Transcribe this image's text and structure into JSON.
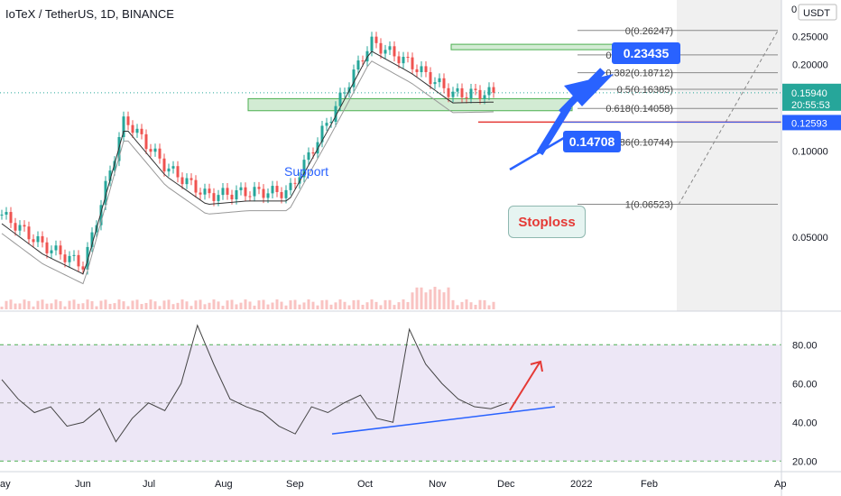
{
  "header": {
    "title": "IoTeX / TetherUS, 1D, BINANCE"
  },
  "currency": "USDT",
  "chart_data": [
    {
      "type": "candlestick",
      "title": "IoTeX / TetherUS, 1D, BINANCE",
      "y_scale": "log",
      "ylim": [
        0.032,
        0.29
      ],
      "price_ticks": [
        "0.25000",
        "0.20000",
        "0.10000",
        "0.05000"
      ],
      "price_tick_values": [
        0.25,
        0.2,
        0.1,
        0.05
      ],
      "top_tick": "0",
      "x_ticks": [
        "ay",
        "Jun",
        "Jul",
        "Aug",
        "Sep",
        "Oct",
        "Nov",
        "Dec",
        "2022",
        "Feb",
        "Ap"
      ],
      "price_series_approx": {
        "x": [
          "May",
          "Jun",
          "Jul",
          "Aug 10",
          "Aug 20",
          "Sep",
          "Oct",
          "Oct 25",
          "Nov 1",
          "Nov 8",
          "Nov 15",
          "Nov 25",
          "Dec 5"
        ],
        "close": [
          0.06,
          0.047,
          0.04,
          0.13,
          0.088,
          0.07,
          0.072,
          0.072,
          0.13,
          0.24,
          0.2,
          0.158,
          0.159
        ]
      },
      "current_price": "0.15940",
      "countdown": "20:55:53",
      "stoploss_price": "0.12593",
      "stoploss_label": "Stoploss",
      "support_label": "Support",
      "support_zone": [
        0.138,
        0.152
      ],
      "target_zone": [
        0.225,
        0.235
      ],
      "target_1": "0.14708",
      "target_2": "0.23435",
      "fib_levels": [
        {
          "label": "0(0.26247)",
          "value": 0.26247
        },
        {
          "label": "0.236(0.21592)",
          "value": 0.21592
        },
        {
          "label": "0.382(0.18712)",
          "value": 0.18712
        },
        {
          "label": "0.5(0.16385)",
          "value": 0.16385
        },
        {
          "label": "0.618(0.14058)",
          "value": 0.14058
        },
        {
          "label": "0.786(0.10744)",
          "value": 0.10744
        },
        {
          "label": "1(0.06523)",
          "value": 0.06523
        }
      ]
    },
    {
      "type": "line",
      "indicator": "RSI",
      "ylim": [
        15,
        95
      ],
      "y_ticks": [
        "80.00",
        "60.00",
        "40.00",
        "20.00"
      ],
      "y_tick_values": [
        80,
        60,
        40,
        20
      ],
      "levels": [
        80,
        50,
        20
      ],
      "values": [
        62,
        52,
        45,
        48,
        38,
        40,
        47,
        30,
        42,
        50,
        46,
        60,
        90,
        70,
        52,
        48,
        45,
        38,
        34,
        48,
        45,
        50,
        54,
        42,
        40,
        88,
        70,
        60,
        52,
        48,
        47,
        50
      ]
    }
  ],
  "colors": {
    "up": "#26a69a",
    "down": "#ef5350",
    "blue": "#2962ff",
    "price_tag": "#26a69a",
    "stop_tag": "#2962ff",
    "rsi_band": "#ede7f6"
  }
}
